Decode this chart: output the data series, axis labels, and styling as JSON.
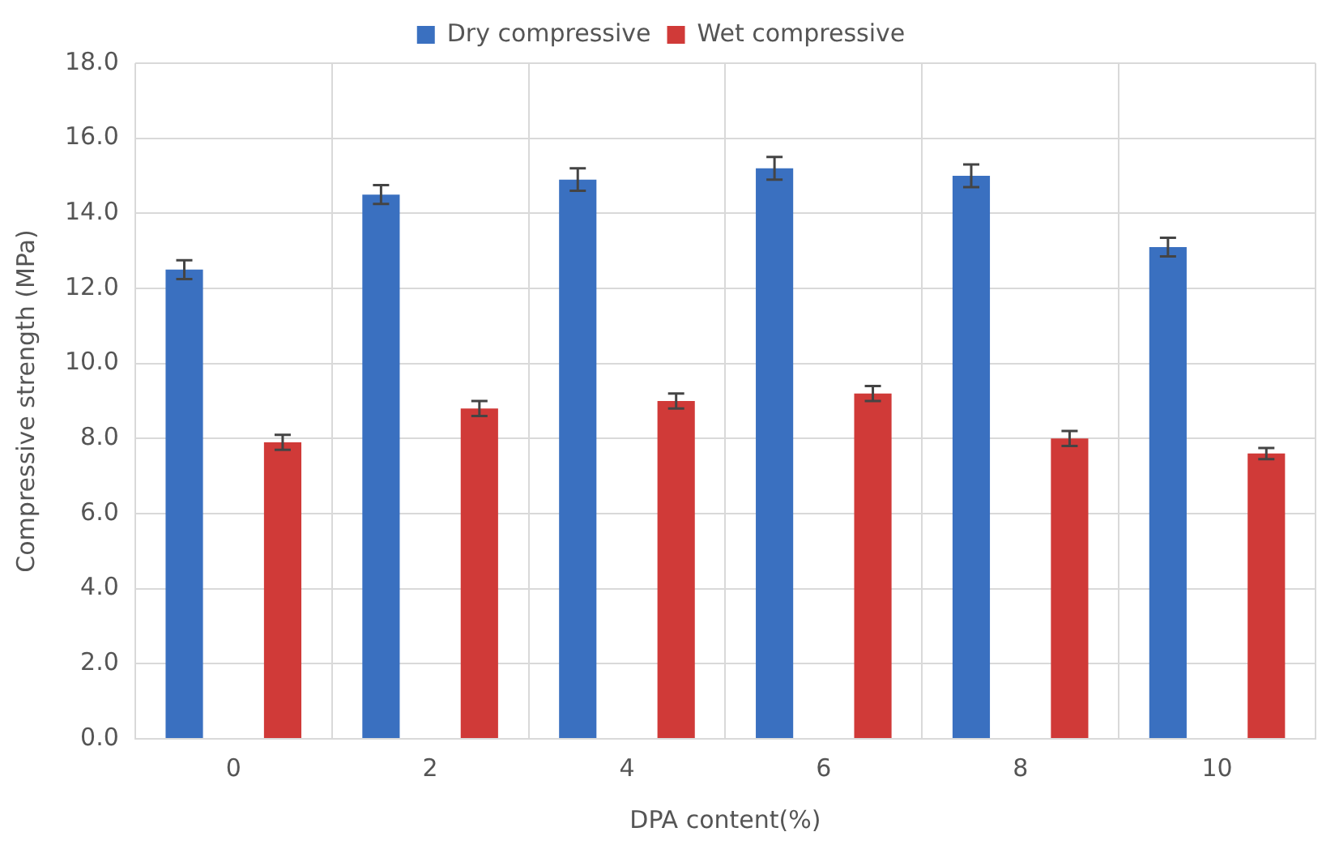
{
  "chart_data": {
    "type": "bar",
    "xlabel": "DPA content(%)",
    "ylabel": "Compressive strength (MPa)",
    "categories": [
      "0",
      "2",
      "4",
      "6",
      "8",
      "10"
    ],
    "series": [
      {
        "name": "Dry compressive",
        "color": "#3a70c0",
        "values": [
          12.5,
          14.5,
          14.9,
          15.2,
          15.0,
          13.1
        ],
        "errors": [
          0.25,
          0.25,
          0.3,
          0.3,
          0.3,
          0.25
        ]
      },
      {
        "name": "Wet compressive",
        "color": "#d03a38",
        "values": [
          7.9,
          8.8,
          9.0,
          9.2,
          8.0,
          7.6
        ],
        "errors": [
          0.2,
          0.2,
          0.2,
          0.2,
          0.2,
          0.15
        ]
      }
    ],
    "ylim": [
      0,
      18
    ],
    "yticks": [
      {
        "value": 0,
        "label": "0.0"
      },
      {
        "value": 2,
        "label": "2.0"
      },
      {
        "value": 4,
        "label": "4.0"
      },
      {
        "value": 6,
        "label": "6.0"
      },
      {
        "value": 8,
        "label": "8.0"
      },
      {
        "value": 10,
        "label": "10.0"
      },
      {
        "value": 12,
        "label": "12.0"
      },
      {
        "value": 14,
        "label": "14.0"
      },
      {
        "value": 16,
        "label": "16.0"
      },
      {
        "value": 18,
        "label": "18.0"
      }
    ],
    "grid": true,
    "legend": "top"
  }
}
